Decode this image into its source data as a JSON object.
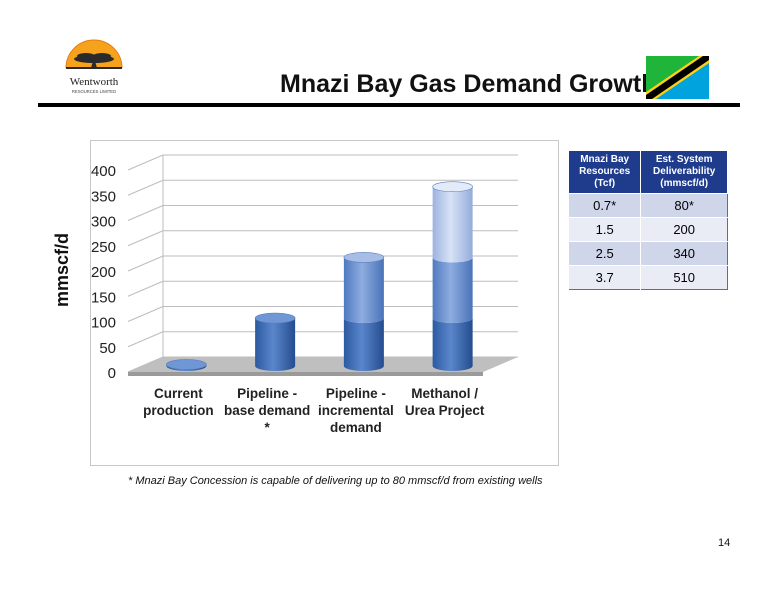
{
  "header": {
    "title": "Mnazi Bay Gas Demand Growth",
    "logo": {
      "name": "Wentworth",
      "subtitle": "RESOURCES LIMITED",
      "icon": "acacia-sunset-icon"
    },
    "flag_icon": "tanzania-flag-icon"
  },
  "chart_data": {
    "type": "bar",
    "stacked": true,
    "style": "3d-cylinder",
    "categories": [
      [
        "Current",
        "production"
      ],
      [
        "Pipeline -",
        "base demand",
        "*"
      ],
      [
        "Pipeline -",
        "incremental",
        "demand"
      ],
      [
        "Methanol /",
        "Urea Project"
      ]
    ],
    "series": [
      {
        "values": [
          3,
          95,
          95,
          95
        ],
        "color": "#3d6db5"
      },
      {
        "values": [
          0,
          0,
          120,
          120
        ],
        "color": "#6b90d0"
      },
      {
        "values": [
          0,
          0,
          0,
          140
        ],
        "color": "#b3c6ea"
      }
    ],
    "ylabel": "mmscf/d",
    "xlabel": "",
    "ylim": [
      0,
      400
    ],
    "yticks": [
      "0",
      "50",
      "100",
      "150",
      "200",
      "250",
      "300",
      "350",
      "400"
    ],
    "grid": true,
    "legend": "none"
  },
  "table": {
    "headers": [
      [
        "Mnazi Bay",
        "Resources",
        "(Tcf)"
      ],
      [
        "Est. System",
        "Deliverability",
        "(mmscf/d)"
      ]
    ],
    "rows": [
      [
        "0.7*",
        "80*"
      ],
      [
        "1.5",
        "200"
      ],
      [
        "2.5",
        "340"
      ],
      [
        "3.7",
        "510"
      ]
    ]
  },
  "footnote": "* Mnazi Bay Concession is capable of delivering up to 80 mmscf/d from existing wells",
  "page_number": "14"
}
